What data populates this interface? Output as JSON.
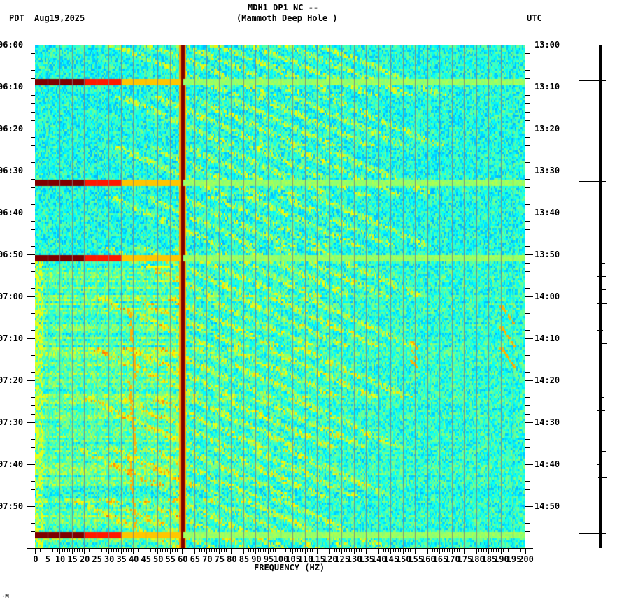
{
  "header": {
    "station": "MDH1 DP1 NC --",
    "site": "(Mammoth Deep Hole )",
    "left_tz": "PDT",
    "date": "Aug19,2025",
    "right_tz": "UTC"
  },
  "footer_mark": "·M",
  "chart_data": {
    "type": "heatmap",
    "title": "MDH1 DP1 NC -- (Mammoth Deep Hole ) spectrogram",
    "xlabel": "FREQUENCY (HZ)",
    "ylabel_left": "PDT",
    "ylabel_right": "UTC",
    "x_range": [
      0,
      200
    ],
    "x_ticks": [
      0,
      5,
      10,
      15,
      20,
      25,
      30,
      35,
      40,
      45,
      50,
      55,
      60,
      65,
      70,
      75,
      80,
      85,
      90,
      95,
      100,
      105,
      110,
      115,
      120,
      125,
      130,
      135,
      140,
      145,
      150,
      155,
      160,
      165,
      170,
      175,
      180,
      185,
      190,
      195,
      200
    ],
    "y_ticks_left": [
      "06:00",
      "06:10",
      "06:20",
      "06:30",
      "06:40",
      "06:50",
      "07:00",
      "07:10",
      "07:20",
      "07:30",
      "07:40",
      "07:50"
    ],
    "y_ticks_right": [
      "13:00",
      "13:10",
      "13:20",
      "13:30",
      "13:40",
      "13:50",
      "14:00",
      "14:10",
      "14:20",
      "14:30",
      "14:40",
      "14:50"
    ],
    "time_range_minutes": [
      0,
      120
    ],
    "grid": "vertical lines every 5 Hz",
    "colormap": "jet (blue low, cyan, yellow, red high)",
    "features": [
      {
        "kind": "persistent_line",
        "freq_hz": 60,
        "note": "strong dark-red 60 Hz line full duration"
      },
      {
        "kind": "broadband_burst",
        "time_min": 8.5,
        "extent_hz": [
          0,
          200
        ],
        "peak_hz": [
          0,
          20
        ]
      },
      {
        "kind": "broadband_burst",
        "time_min": 32.5,
        "extent_hz": [
          0,
          200
        ],
        "peak_hz": [
          0,
          20
        ]
      },
      {
        "kind": "broadband_burst",
        "time_min": 50.5,
        "extent_hz": [
          0,
          200
        ],
        "peak_hz": [
          0,
          20
        ]
      },
      {
        "kind": "broadband_burst",
        "time_min": 116.5,
        "extent_hz": [
          0,
          200
        ],
        "peak_hz": [
          0,
          20
        ]
      },
      {
        "kind": "narrow_band",
        "time_min": 52.5,
        "extent_hz": [
          45,
          55
        ]
      },
      {
        "kind": "drifting_line",
        "time_min": [
          62,
          115
        ],
        "freq_hz": [
          38,
          41
        ]
      },
      {
        "kind": "drifting_line",
        "time_min": [
          70,
          77
        ],
        "freq_hz": [
          153,
          156
        ]
      },
      {
        "kind": "drifting_line",
        "time_min": [
          62,
          77
        ],
        "freq_hz": [
          190,
          196
        ]
      },
      {
        "kind": "curved_harmonics",
        "time_min": [
          0,
          110
        ],
        "note": "arched cyan streaks 20-120 Hz"
      }
    ]
  },
  "trace": {
    "event_marks_min": [
      8.5,
      32.5,
      50.5,
      116.5
    ]
  }
}
